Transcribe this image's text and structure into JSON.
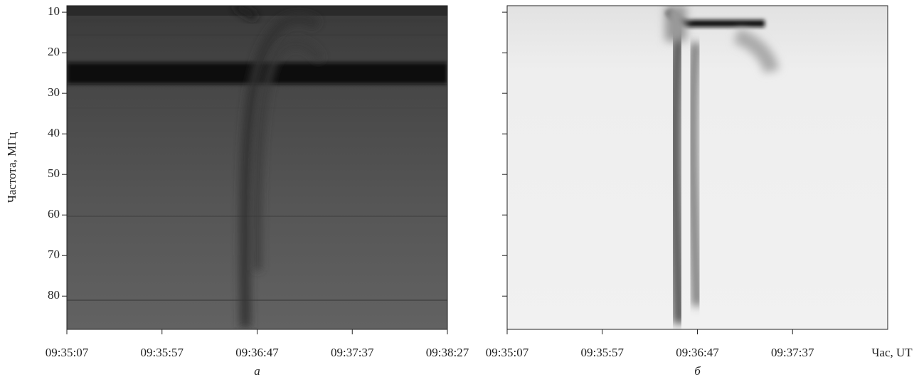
{
  "chart_data": [
    {
      "type": "spectrogram",
      "ylabel": "Частота, МГц",
      "caption": "а",
      "xlim": [
        34507,
        34707
      ],
      "xticks": [
        {
          "value": 34507,
          "label": "09:35:07"
        },
        {
          "value": 34557,
          "label": "09:35:57"
        },
        {
          "value": 34607,
          "label": "09:36:47"
        },
        {
          "value": 34657,
          "label": "09:37:37"
        },
        {
          "value": 34707,
          "label": "09:38:27"
        }
      ],
      "ylim": [
        8.4,
        88.2
      ],
      "y_inverted": true,
      "yticks": [
        10,
        20,
        30,
        40,
        50,
        60,
        70,
        80
      ],
      "ytick_labels": true
    },
    {
      "type": "spectrogram",
      "xlabel": "Час, UT",
      "caption": "б",
      "xlim": [
        34507,
        34707
      ],
      "xticks": [
        {
          "value": 34507,
          "label": "09:35:07"
        },
        {
          "value": 34557,
          "label": "09:35:57"
        },
        {
          "value": 34607,
          "label": "09:36:47"
        },
        {
          "value": 34657,
          "label": "09:37:37"
        }
      ],
      "ylim": [
        8.4,
        88.2
      ],
      "y_inverted": true,
      "yticks": [
        10,
        20,
        30,
        40,
        50,
        60,
        70,
        80
      ],
      "ytick_labels": false
    }
  ]
}
